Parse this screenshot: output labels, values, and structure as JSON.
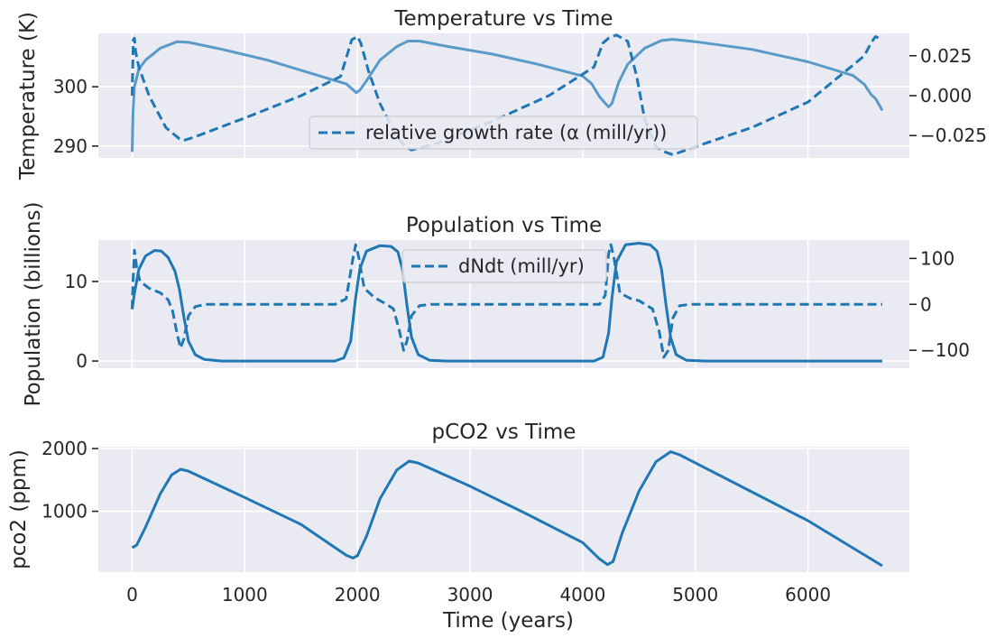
{
  "chart_data": [
    {
      "type": "line",
      "title": "Temperature vs Time",
      "ylabel": "Temperature (K)",
      "y2label": "",
      "xlim": [
        -300,
        6900
      ],
      "ylim": [
        288.0,
        309.0
      ],
      "y2lim": [
        -0.039,
        0.039
      ],
      "yticks": [
        290,
        300
      ],
      "y2ticks": [
        0.025,
        0.0,
        -0.025
      ],
      "y2ticklabels": [
        "0.025",
        "0.000",
        "−0.025"
      ],
      "xticks": [
        0,
        1000,
        2000,
        3000,
        4000,
        5000,
        6000
      ],
      "show_xticklabels": false,
      "legend": {
        "entries": [
          "relative growth rate (α (mill/yr))"
        ],
        "placement": "center"
      },
      "series": [
        {
          "axis": "left",
          "color": "#5a9ac9",
          "style": "solid",
          "points": [
            [
              0,
              289
            ],
            [
              8,
              296
            ],
            [
              20,
              300
            ],
            [
              60,
              303
            ],
            [
              120,
              304.5
            ],
            [
              250,
              306.5
            ],
            [
              400,
              307.6
            ],
            [
              500,
              307.5
            ],
            [
              800,
              306.3
            ],
            [
              1200,
              304.5
            ],
            [
              1600,
              302.2
            ],
            [
              1900,
              300.5
            ],
            [
              1960,
              299.5
            ],
            [
              1990,
              299.0
            ],
            [
              2020,
              299.4
            ],
            [
              2080,
              301.0
            ],
            [
              2200,
              304.5
            ],
            [
              2350,
              306.8
            ],
            [
              2450,
              307.7
            ],
            [
              2550,
              307.7
            ],
            [
              2800,
              306.8
            ],
            [
              3200,
              305.5
            ],
            [
              3600,
              303.8
            ],
            [
              4000,
              301.8
            ],
            [
              4080,
              300.5
            ],
            [
              4150,
              298.3
            ],
            [
              4200,
              297.2
            ],
            [
              4230,
              296.6
            ],
            [
              4260,
              297.2
            ],
            [
              4320,
              300.8
            ],
            [
              4400,
              303.8
            ],
            [
              4550,
              306.5
            ],
            [
              4700,
              307.8
            ],
            [
              4800,
              308.0
            ],
            [
              5000,
              307.6
            ],
            [
              5500,
              306.3
            ],
            [
              6000,
              304.2
            ],
            [
              6400,
              301.9
            ],
            [
              6500,
              300.4
            ],
            [
              6560,
              298.7
            ],
            [
              6600,
              298.0
            ],
            [
              6660,
              296.0
            ]
          ]
        },
        {
          "axis": "right",
          "color": "#1f77b4",
          "style": "dashed",
          "points": [
            [
              0,
              0.0
            ],
            [
              10,
              0.035
            ],
            [
              20,
              0.036
            ],
            [
              30,
              0.028
            ],
            [
              60,
              0.018
            ],
            [
              150,
              0.0
            ],
            [
              300,
              -0.02
            ],
            [
              420,
              -0.027
            ],
            [
              460,
              -0.028
            ],
            [
              550,
              -0.026
            ],
            [
              1000,
              -0.014
            ],
            [
              1500,
              0.0
            ],
            [
              1850,
              0.012
            ],
            [
              1950,
              0.035
            ],
            [
              2000,
              0.037
            ],
            [
              2030,
              0.033
            ],
            [
              2100,
              0.015
            ],
            [
              2200,
              -0.005
            ],
            [
              2350,
              -0.026
            ],
            [
              2430,
              -0.032
            ],
            [
              2480,
              -0.034
            ],
            [
              2700,
              -0.03
            ],
            [
              3200,
              -0.016
            ],
            [
              3700,
              0.0
            ],
            [
              4100,
              0.018
            ],
            [
              4180,
              0.033
            ],
            [
              4230,
              0.036
            ],
            [
              4300,
              0.038
            ],
            [
              4400,
              0.034
            ],
            [
              4480,
              0.012
            ],
            [
              4550,
              -0.015
            ],
            [
              4650,
              -0.032
            ],
            [
              4720,
              -0.035
            ],
            [
              4800,
              -0.037
            ],
            [
              5000,
              -0.032
            ],
            [
              5500,
              -0.02
            ],
            [
              6000,
              -0.004
            ],
            [
              6500,
              0.025
            ],
            [
              6560,
              0.033
            ],
            [
              6600,
              0.037
            ],
            [
              6660,
              0.035
            ]
          ]
        }
      ]
    },
    {
      "type": "line",
      "title": "Population vs Time",
      "ylabel": "Population (billions)",
      "y2label": "",
      "xlim": [
        -300,
        6900
      ],
      "ylim": [
        -0.9,
        15.2
      ],
      "y2lim": [
        -139,
        140
      ],
      "yticks": [
        0,
        10
      ],
      "y2ticks": [
        100,
        0,
        -100
      ],
      "y2ticklabels": [
        "100",
        "0",
        "−100"
      ],
      "xticks": [
        0,
        1000,
        2000,
        3000,
        4000,
        5000,
        6000
      ],
      "show_xticklabels": false,
      "legend": {
        "entries": [
          "dNdt (mill/yr)"
        ],
        "placement": "upper center"
      },
      "series": [
        {
          "axis": "left",
          "color": "#1f77b4",
          "style": "solid",
          "points": [
            [
              0,
              6.5
            ],
            [
              20,
              8.5
            ],
            [
              60,
              11.5
            ],
            [
              120,
              13.2
            ],
            [
              200,
              13.9
            ],
            [
              260,
              13.8
            ],
            [
              320,
              13.0
            ],
            [
              380,
              11.3
            ],
            [
              420,
              9.0
            ],
            [
              460,
              5.5
            ],
            [
              500,
              2.5
            ],
            [
              560,
              0.8
            ],
            [
              640,
              0.2
            ],
            [
              800,
              0.0
            ],
            [
              1800,
              0.0
            ],
            [
              1880,
              0.4
            ],
            [
              1940,
              2.5
            ],
            [
              1980,
              7.5
            ],
            [
              2020,
              11.5
            ],
            [
              2080,
              13.8
            ],
            [
              2200,
              14.5
            ],
            [
              2300,
              14.4
            ],
            [
              2360,
              13.7
            ],
            [
              2400,
              11.5
            ],
            [
              2440,
              7.0
            ],
            [
              2480,
              3.0
            ],
            [
              2540,
              0.8
            ],
            [
              2640,
              0.1
            ],
            [
              2800,
              0.0
            ],
            [
              4100,
              0.0
            ],
            [
              4180,
              0.5
            ],
            [
              4230,
              3.5
            ],
            [
              4260,
              8.0
            ],
            [
              4300,
              12.5
            ],
            [
              4380,
              14.6
            ],
            [
              4500,
              14.8
            ],
            [
              4600,
              14.6
            ],
            [
              4660,
              13.8
            ],
            [
              4700,
              11.5
            ],
            [
              4740,
              7.0
            ],
            [
              4780,
              3.0
            ],
            [
              4830,
              0.8
            ],
            [
              4920,
              0.1
            ],
            [
              5100,
              0.0
            ],
            [
              6660,
              0.0
            ]
          ]
        },
        {
          "axis": "right",
          "color": "#1f77b4",
          "style": "dashed",
          "points": [
            [
              0,
              -10
            ],
            [
              10,
              60
            ],
            [
              20,
              118
            ],
            [
              40,
              80
            ],
            [
              70,
              50
            ],
            [
              150,
              35
            ],
            [
              250,
              25
            ],
            [
              320,
              10
            ],
            [
              360,
              -15
            ],
            [
              400,
              -65
            ],
            [
              430,
              -95
            ],
            [
              460,
              -75
            ],
            [
              500,
              -25
            ],
            [
              560,
              -5
            ],
            [
              650,
              0
            ],
            [
              800,
              0
            ],
            [
              1800,
              0
            ],
            [
              1900,
              12
            ],
            [
              1960,
              100
            ],
            [
              1985,
              130
            ],
            [
              2010,
              105
            ],
            [
              2060,
              35
            ],
            [
              2150,
              15
            ],
            [
              2260,
              0
            ],
            [
              2320,
              -10
            ],
            [
              2370,
              -55
            ],
            [
              2410,
              -100
            ],
            [
              2440,
              -80
            ],
            [
              2480,
              -25
            ],
            [
              2550,
              -3
            ],
            [
              2650,
              0
            ],
            [
              4150,
              0
            ],
            [
              4200,
              20
            ],
            [
              4230,
              110
            ],
            [
              4250,
              130
            ],
            [
              4275,
              105
            ],
            [
              4330,
              25
            ],
            [
              4420,
              13
            ],
            [
              4500,
              8
            ],
            [
              4620,
              -10
            ],
            [
              4680,
              -60
            ],
            [
              4720,
              -115
            ],
            [
              4760,
              -100
            ],
            [
              4800,
              -30
            ],
            [
              4860,
              -3
            ],
            [
              4950,
              0
            ],
            [
              6660,
              0
            ]
          ]
        }
      ]
    },
    {
      "type": "line",
      "title": "pCO2 vs Time",
      "ylabel": "pco2 (ppm)",
      "xlabel": "Time (years)",
      "xlim": [
        -300,
        6900
      ],
      "ylim": [
        30,
        2030
      ],
      "yticks": [
        1000,
        2000
      ],
      "xticks": [
        0,
        1000,
        2000,
        3000,
        4000,
        5000,
        6000
      ],
      "show_xticklabels": true,
      "series": [
        {
          "axis": "left",
          "color": "#1f77b4",
          "style": "solid",
          "points": [
            [
              0,
              420
            ],
            [
              40,
              460
            ],
            [
              120,
              750
            ],
            [
              250,
              1280
            ],
            [
              350,
              1580
            ],
            [
              430,
              1670
            ],
            [
              500,
              1640
            ],
            [
              1000,
              1220
            ],
            [
              1500,
              790
            ],
            [
              1900,
              300
            ],
            [
              1960,
              255
            ],
            [
              2000,
              290
            ],
            [
              2080,
              600
            ],
            [
              2200,
              1200
            ],
            [
              2350,
              1660
            ],
            [
              2460,
              1800
            ],
            [
              2540,
              1770
            ],
            [
              3000,
              1400
            ],
            [
              3500,
              960
            ],
            [
              4000,
              500
            ],
            [
              4150,
              240
            ],
            [
              4220,
              150
            ],
            [
              4270,
              200
            ],
            [
              4350,
              650
            ],
            [
              4500,
              1320
            ],
            [
              4650,
              1790
            ],
            [
              4780,
              1950
            ],
            [
              4860,
              1900
            ],
            [
              5500,
              1310
            ],
            [
              6000,
              850
            ],
            [
              6660,
              130
            ]
          ]
        }
      ]
    }
  ]
}
